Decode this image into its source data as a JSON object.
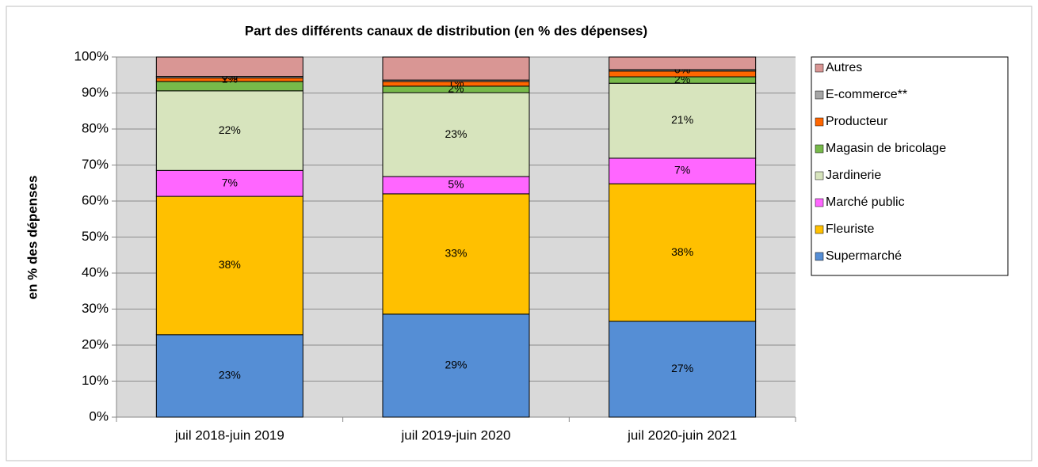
{
  "chart_data": {
    "type": "stacked_bar",
    "title": "Part des différents canaux de distribution (en % des dépenses)",
    "y_label": "en % des dépenses",
    "categories": [
      "juil 2018-juin 2019",
      "juil 2019-juin 2020",
      "juil 2020-juin 2021"
    ],
    "series": [
      {
        "name": "Supermarché",
        "color": "#558ed5",
        "values": [
          22.9,
          28.6,
          26.6
        ],
        "value_labels": [
          "23%",
          "29%",
          "27%"
        ]
      },
      {
        "name": "Fleuriste",
        "color": "#ffc000",
        "values": [
          38.4,
          33.4,
          38.2
        ],
        "value_labels": [
          "38%",
          "33%",
          "38%"
        ]
      },
      {
        "name": "Marché public",
        "color": "#ff66ff",
        "values": [
          7.2,
          4.8,
          7.1
        ],
        "value_labels": [
          "7%",
          "5%",
          "7%"
        ]
      },
      {
        "name": "Jardinerie",
        "color": "#d7e4bd",
        "values": [
          22.1,
          23.3,
          20.8
        ],
        "value_labels": [
          "22%",
          "23%",
          "21%"
        ]
      },
      {
        "name": "Magasin de bricolage",
        "color": "#77b94a",
        "values": [
          2.6,
          1.8,
          1.8
        ],
        "value_labels": [
          null,
          "2%",
          "2%"
        ]
      },
      {
        "name": "Producteur",
        "color": "#ff6600",
        "values": [
          1.0,
          1.3,
          1.6
        ],
        "value_labels": [
          "1%",
          "1%",
          null
        ]
      },
      {
        "name": "E-commerce**",
        "color": "#a6a6a6",
        "values": [
          0.4,
          0.4,
          0.4
        ],
        "value_labels": [
          "0%",
          null,
          "0%"
        ]
      },
      {
        "name": "Autres",
        "color": "#d99694",
        "values": [
          5.4,
          6.4,
          3.5
        ],
        "value_labels": [
          null,
          null,
          null
        ]
      }
    ],
    "ylim": [
      0,
      100
    ],
    "yticks": [
      {
        "value": 0,
        "label": "0%"
      },
      {
        "value": 10,
        "label": "10%"
      },
      {
        "value": 20,
        "label": "20%"
      },
      {
        "value": 30,
        "label": "30%"
      },
      {
        "value": 40,
        "label": "40%"
      },
      {
        "value": 50,
        "label": "50%"
      },
      {
        "value": 60,
        "label": "60%"
      },
      {
        "value": 70,
        "label": "70%"
      },
      {
        "value": 80,
        "label": "80%"
      },
      {
        "value": 90,
        "label": "90%"
      },
      {
        "value": 100,
        "label": "100%"
      }
    ],
    "grid": true,
    "legend": "right"
  }
}
